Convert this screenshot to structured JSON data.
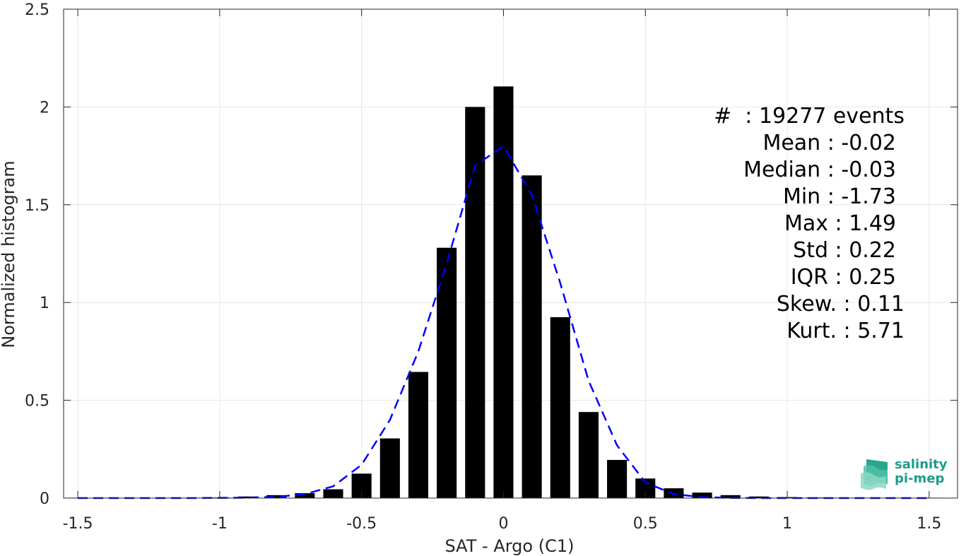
{
  "chart_data": {
    "type": "bar",
    "xlabel": "SAT - Argo (C1)",
    "ylabel": "Normalized histogram",
    "xlim": [
      -1.55,
      1.6
    ],
    "ylim": [
      0,
      2.5
    ],
    "xticks": [
      "-1.5",
      "-1",
      "-0.5",
      "0",
      "0.5",
      "1",
      "1.5"
    ],
    "xtick_values": [
      -1.5,
      -1,
      -0.5,
      0,
      0.5,
      1,
      1.5
    ],
    "yticks": [
      "0",
      "0.5",
      "1",
      "1.5",
      "2",
      "2.5"
    ],
    "ytick_values": [
      0,
      0.5,
      1,
      1.5,
      2,
      2.5
    ],
    "grid": true,
    "bin_width": 0.1,
    "bars": {
      "x": [
        -1.5,
        -1.4,
        -1.3,
        -1.2,
        -1.1,
        -1.0,
        -0.9,
        -0.8,
        -0.7,
        -0.6,
        -0.5,
        -0.4,
        -0.3,
        -0.2,
        -0.1,
        0.0,
        0.1,
        0.2,
        0.3,
        0.4,
        0.5,
        0.6,
        0.7,
        0.8,
        0.9,
        1.0,
        1.1,
        1.2,
        1.3,
        1.4,
        1.5
      ],
      "values": [
        0.002,
        0.002,
        0.002,
        0.002,
        0.002,
        0.003,
        0.008,
        0.015,
        0.025,
        0.045,
        0.125,
        0.305,
        0.645,
        1.28,
        2.0,
        2.105,
        1.65,
        0.925,
        0.44,
        0.195,
        0.1,
        0.05,
        0.028,
        0.015,
        0.008,
        0.005,
        0.003,
        0.002,
        0.002,
        0.002,
        0.002
      ]
    },
    "fit_curve": {
      "style": "dashed",
      "color": "#0000ff",
      "x": [
        -1.5,
        -1.3,
        -1.1,
        -0.9,
        -0.8,
        -0.7,
        -0.6,
        -0.5,
        -0.4,
        -0.3,
        -0.2,
        -0.1,
        0.0,
        0.1,
        0.2,
        0.3,
        0.4,
        0.5,
        0.6,
        0.7,
        0.8,
        0.9,
        1.1,
        1.3,
        1.5
      ],
      "y": [
        0.0,
        0.0,
        0.0,
        0.002,
        0.006,
        0.02,
        0.06,
        0.17,
        0.4,
        0.75,
        1.2,
        1.7,
        1.8,
        1.55,
        1.1,
        0.6,
        0.27,
        0.08,
        0.02,
        0.005,
        0.001,
        0.0,
        0.0,
        0.0,
        0.0
      ]
    }
  },
  "stats": {
    "events": "#  : 19277 events",
    "mean": "Mean : -0.02",
    "median": "Median : -0.03",
    "min": "Min : -1.73",
    "max": "Max : 1.49",
    "std": "Std : 0.22",
    "iqr": "IQR : 0.25",
    "skew": "Skew. : 0.11",
    "kurt": "Kurt. : 5.71"
  },
  "logo": {
    "line1": "salinity",
    "line2": "pi-mep",
    "color": "#1a9c8c"
  },
  "colors": {
    "bar": "#000000",
    "fit": "#0000ff",
    "grid": "#e6e6e6",
    "axis": "#262626"
  }
}
